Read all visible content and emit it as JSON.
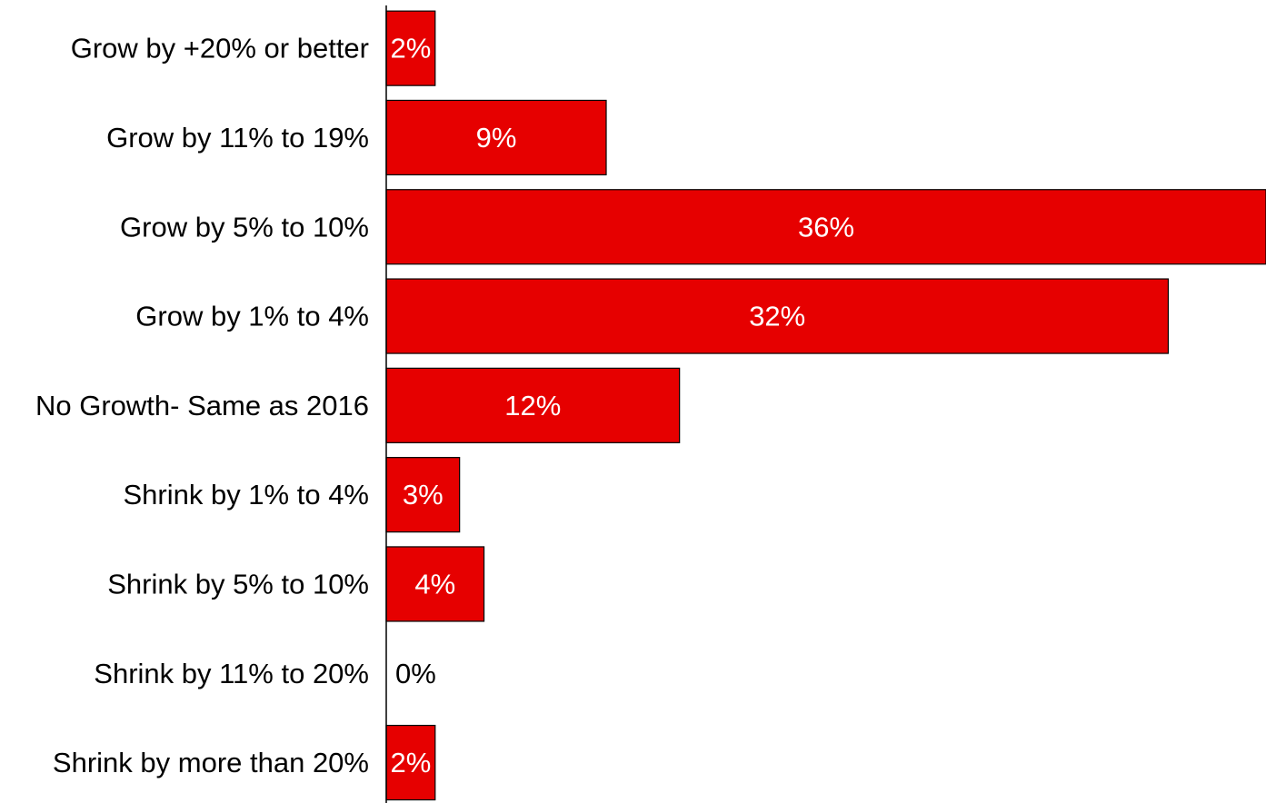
{
  "chart_data": {
    "type": "bar",
    "orientation": "horizontal",
    "categories": [
      "Grow by +20% or better",
      "Grow by 11% to 19%",
      "Grow by 5% to 10%",
      "Grow by 1% to 4%",
      "No Growth- Same as 2016",
      "Shrink by 1% to 4%",
      "Shrink by 5% to 10%",
      "Shrink by 11% to 20%",
      "Shrink by more than 20%"
    ],
    "values": [
      2,
      9,
      36,
      32,
      12,
      3,
      4,
      0,
      2
    ],
    "value_labels": [
      "2%",
      "9%",
      "36%",
      "32%",
      "12%",
      "3%",
      "4%",
      "0%",
      "2%"
    ],
    "title": "",
    "xlabel": "",
    "ylabel": "",
    "xlim": [
      0,
      36
    ],
    "grid": false,
    "legend": "none",
    "colors": {
      "bar_fill": "#e60000",
      "bar_stroke": "#000000",
      "label_inside": "#ffffff",
      "label_outside": "#000000",
      "axis": "#000000"
    }
  }
}
